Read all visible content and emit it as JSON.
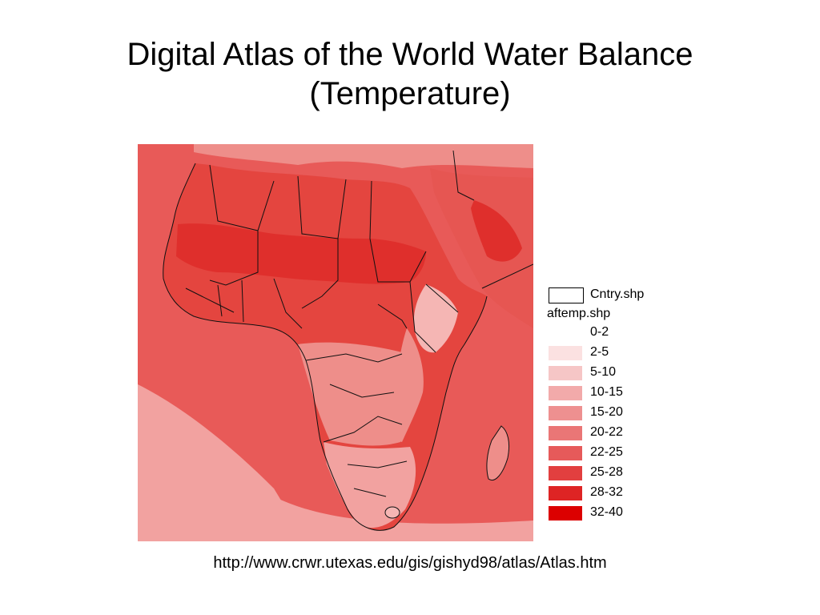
{
  "title": {
    "line1": "Digital Atlas of the World Water Balance",
    "line2": "(Temperature)"
  },
  "legend": {
    "country_layer": "Cntry.shp",
    "value_layer": "aftemp.shp",
    "classes": [
      {
        "label": "0-2",
        "color": "#ffffff"
      },
      {
        "label": "2-5",
        "color": "#fbe1e1"
      },
      {
        "label": "5-10",
        "color": "#f6c6c6"
      },
      {
        "label": "10-15",
        "color": "#f2aaaa"
      },
      {
        "label": "15-20",
        "color": "#ee9090"
      },
      {
        "label": "20-22",
        "color": "#ea7676"
      },
      {
        "label": "22-25",
        "color": "#e65a5a"
      },
      {
        "label": "25-28",
        "color": "#e23f3f"
      },
      {
        "label": "28-32",
        "color": "#de2424"
      },
      {
        "label": "32-40",
        "color": "#dc0000"
      }
    ]
  },
  "map": {
    "ocean_color": "#e85a58",
    "land_color": "#e4453f",
    "colors": {
      "cool": "#f2a2a0",
      "mild": "#ee8e8a",
      "warm": "#e65652",
      "hot": "#df2f2c",
      "highland": "#f5b6b4",
      "border": "#111111"
    }
  },
  "source_url": "http://www.crwr.utexas.edu/gis/gishyd98/atlas/Atlas.htm"
}
